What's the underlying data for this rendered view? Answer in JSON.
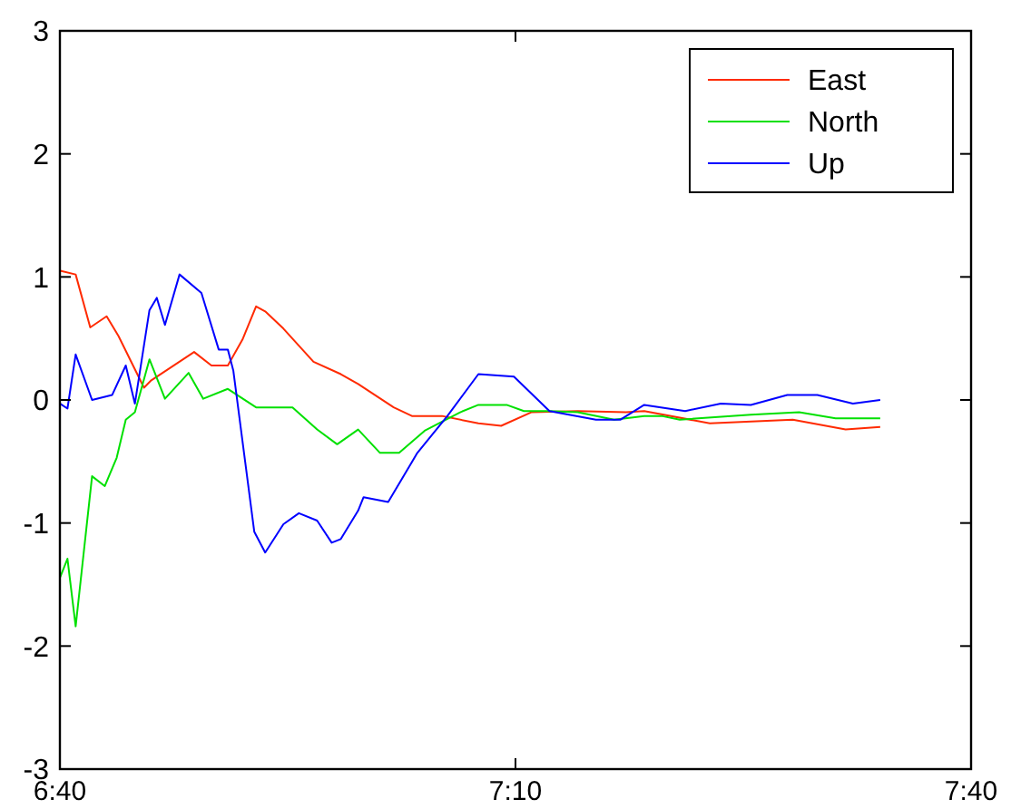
{
  "chart_data": {
    "type": "line",
    "xlim": [
      6.6667,
      7.6667
    ],
    "xticks": [
      {
        "value": 6.6667,
        "label": "6:40"
      },
      {
        "value": 7.1667,
        "label": "7:10"
      },
      {
        "value": 7.6667,
        "label": "7:40"
      }
    ],
    "ylim": [
      -3,
      3
    ],
    "yticks": [
      -3,
      -2,
      -1,
      0,
      1,
      2,
      3
    ],
    "grid": false,
    "legend": "top right",
    "marker": "none",
    "line_style": "solid",
    "series": [
      {
        "name": "East",
        "color": "#ff2a00",
        "x": [
          6.667,
          6.684,
          6.7,
          6.718,
          6.731,
          6.759,
          6.767,
          6.814,
          6.833,
          6.851,
          6.867,
          6.882,
          6.892,
          6.912,
          6.945,
          6.975,
          6.994,
          7.033,
          7.053,
          7.086,
          7.126,
          7.151,
          7.184,
          7.235,
          7.288,
          7.308,
          7.38,
          7.471,
          7.529,
          7.567
        ],
        "values": [
          1.05,
          1.02,
          0.59,
          0.68,
          0.52,
          0.1,
          0.16,
          0.39,
          0.28,
          0.28,
          0.49,
          0.76,
          0.72,
          0.58,
          0.31,
          0.21,
          0.13,
          -0.06,
          -0.13,
          -0.13,
          -0.19,
          -0.21,
          -0.1,
          -0.09,
          -0.1,
          -0.09,
          -0.19,
          -0.16,
          -0.24,
          -0.22
        ]
      },
      {
        "name": "North",
        "color": "#00e000",
        "x": [
          6.667,
          6.675,
          6.684,
          6.702,
          6.716,
          6.729,
          6.739,
          6.749,
          6.765,
          6.782,
          6.808,
          6.824,
          6.851,
          6.882,
          6.902,
          6.922,
          6.949,
          6.971,
          6.994,
          7.018,
          7.039,
          7.067,
          7.106,
          7.126,
          7.157,
          7.176,
          7.204,
          7.235,
          7.275,
          7.308,
          7.327,
          7.347,
          7.425,
          7.478,
          7.518,
          7.567
        ],
        "values": [
          -1.44,
          -1.29,
          -1.84,
          -0.62,
          -0.7,
          -0.47,
          -0.16,
          -0.1,
          0.33,
          0.01,
          0.22,
          0.01,
          0.09,
          -0.06,
          -0.06,
          -0.06,
          -0.24,
          -0.36,
          -0.24,
          -0.43,
          -0.43,
          -0.25,
          -0.1,
          -0.04,
          -0.04,
          -0.09,
          -0.09,
          -0.1,
          -0.16,
          -0.13,
          -0.13,
          -0.16,
          -0.12,
          -0.1,
          -0.15,
          -0.15
        ]
      },
      {
        "name": "Up",
        "color": "#0000ff",
        "x": [
          6.667,
          6.675,
          6.684,
          6.702,
          6.724,
          6.739,
          6.749,
          6.765,
          6.773,
          6.782,
          6.798,
          6.822,
          6.841,
          6.851,
          6.857,
          6.88,
          6.892,
          6.912,
          6.929,
          6.949,
          6.965,
          6.975,
          6.994,
          7.0,
          7.027,
          7.059,
          7.092,
          7.126,
          7.165,
          7.204,
          7.255,
          7.282,
          7.308,
          7.353,
          7.392,
          7.425,
          7.465,
          7.498,
          7.537,
          7.567
        ],
        "values": [
          -0.03,
          -0.07,
          0.37,
          0.0,
          0.04,
          0.28,
          -0.03,
          0.73,
          0.83,
          0.61,
          1.02,
          0.87,
          0.41,
          0.41,
          0.24,
          -1.07,
          -1.24,
          -1.01,
          -0.92,
          -0.98,
          -1.16,
          -1.13,
          -0.9,
          -0.79,
          -0.83,
          -0.43,
          -0.13,
          0.21,
          0.19,
          -0.09,
          -0.16,
          -0.16,
          -0.04,
          -0.09,
          -0.03,
          -0.04,
          0.04,
          0.04,
          -0.03,
          0.0
        ]
      }
    ]
  }
}
